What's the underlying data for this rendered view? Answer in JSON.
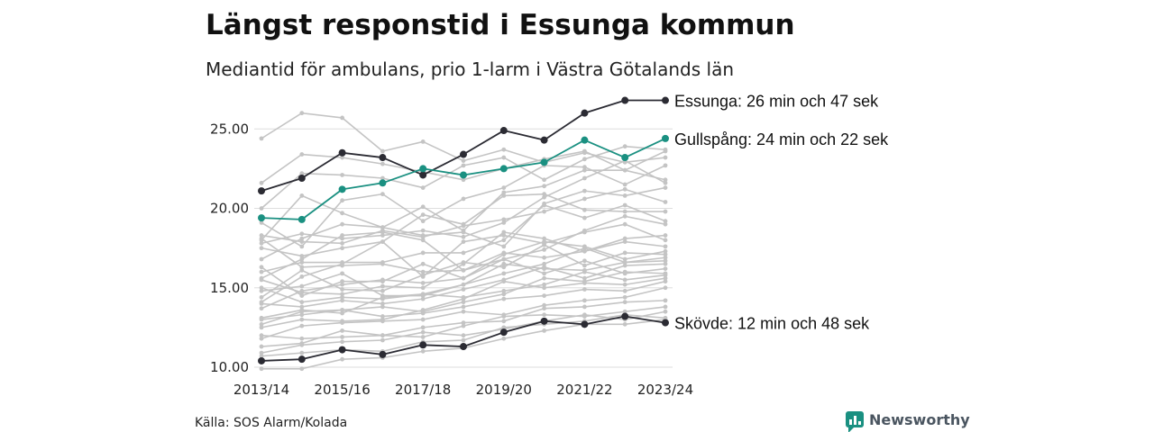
{
  "chart_data": {
    "type": "line",
    "title": "Längst responstid i Essunga kommun",
    "subtitle": "Mediantid för ambulans, prio 1-larm i Västra Götalands län",
    "x": [
      "2013/14",
      "2014/15",
      "2015/16",
      "2016/17",
      "2017/18",
      "2018/19",
      "2019/20",
      "2020/21",
      "2021/22",
      "2022/23",
      "2023/24"
    ],
    "x_tick_labels": [
      "2013/14",
      "2015/16",
      "2017/18",
      "2019/20",
      "2021/22",
      "2023/24"
    ],
    "y_ticks": [
      "10.00",
      "15.00",
      "20.00",
      "25.00"
    ],
    "ylim": [
      10,
      27
    ],
    "grid": "horizontal",
    "highlighted_series": [
      {
        "name": "Essunga",
        "label": "Essunga: 26 min och 47 sek",
        "color": "#2b2b33",
        "values": [
          21.1,
          21.9,
          23.5,
          23.2,
          22.1,
          23.4,
          24.9,
          24.3,
          26.0,
          26.8,
          26.8
        ]
      },
      {
        "name": "Gullspång",
        "label": "Gullspång: 24 min och 22 sek",
        "color": "#1a9081",
        "values": [
          19.4,
          19.3,
          21.2,
          21.6,
          22.5,
          22.1,
          22.5,
          22.9,
          24.3,
          23.2,
          24.4
        ]
      },
      {
        "name": "Skövde",
        "label": "Skövde: 12 min och 48 sek",
        "color": "#2b2b33",
        "values": [
          10.4,
          10.5,
          11.1,
          10.8,
          11.4,
          11.3,
          12.2,
          12.9,
          12.7,
          13.2,
          12.8
        ]
      }
    ],
    "background_series_color": "#c4c4c4",
    "background_series": [
      [
        24.4,
        26.0,
        25.7,
        23.6,
        24.2,
        23.0,
        23.7,
        22.9,
        23.5,
        22.9,
        23.2
      ],
      [
        21.6,
        23.4,
        23.2,
        22.8,
        22.3,
        21.8,
        22.5,
        23.1,
        23.6,
        22.4,
        23.6
      ],
      [
        20.0,
        22.2,
        22.1,
        21.9,
        21.3,
        22.7,
        23.2,
        21.8,
        23.1,
        23.9,
        23.7
      ],
      [
        19.1,
        17.6,
        20.5,
        20.9,
        19.2,
        20.6,
        21.3,
        22.7,
        22.6,
        21.5,
        22.7
      ],
      [
        18.0,
        20.8,
        19.7,
        18.8,
        20.1,
        18.6,
        21.0,
        21.4,
        22.4,
        22.4,
        21.8
      ],
      [
        17.8,
        18.4,
        18.1,
        18.3,
        18.6,
        18.2,
        19.1,
        20.7,
        21.9,
        23.0,
        21.6
      ],
      [
        16.8,
        18.1,
        19.0,
        18.8,
        18.3,
        18.5,
        17.6,
        20.3,
        21.1,
        20.8,
        21.3
      ],
      [
        18.3,
        17.9,
        17.8,
        18.6,
        18.2,
        18.9,
        19.3,
        19.8,
        20.6,
        21.2,
        20.4
      ],
      [
        17.5,
        17.0,
        17.5,
        17.9,
        19.6,
        19.0,
        20.8,
        20.9,
        19.9,
        19.8,
        19.8
      ],
      [
        16.0,
        16.6,
        16.6,
        16.6,
        17.2,
        17.2,
        18.0,
        20.2,
        19.4,
        20.2,
        19.2
      ],
      [
        15.6,
        16.8,
        18.3,
        18.5,
        18.0,
        16.1,
        16.8,
        17.4,
        18.6,
        19.5,
        19.0
      ],
      [
        18.1,
        16.3,
        16.4,
        16.5,
        16.0,
        16.1,
        17.2,
        16.9,
        17.3,
        18.1,
        18.3
      ],
      [
        14.1,
        15.7,
        16.5,
        17.9,
        15.7,
        17.9,
        18.3,
        17.8,
        18.5,
        19.0,
        18.0
      ],
      [
        15.5,
        14.7,
        14.6,
        15.1,
        15.0,
        16.5,
        18.5,
        18.1,
        17.3,
        17.9,
        17.6
      ],
      [
        16.3,
        14.5,
        15.4,
        15.4,
        16.5,
        15.6,
        17.1,
        17.9,
        17.6,
        16.8,
        17.3
      ],
      [
        14.4,
        16.1,
        14.9,
        14.8,
        15.8,
        16.6,
        16.3,
        17.7,
        16.4,
        17.2,
        17.1
      ],
      [
        15.0,
        14.1,
        14.4,
        14.3,
        14.6,
        15.2,
        15.9,
        16.5,
        17.5,
        16.6,
        16.9
      ],
      [
        14.8,
        15.1,
        15.9,
        14.5,
        14.5,
        15.2,
        16.5,
        16.2,
        16.1,
        16.6,
        16.7
      ],
      [
        14.0,
        13.8,
        14.2,
        14.0,
        14.3,
        14.9,
        15.5,
        16.3,
        15.6,
        16.4,
        16.5
      ],
      [
        13.7,
        14.8,
        15.2,
        15.5,
        15.3,
        15.6,
        16.8,
        15.9,
        16.7,
        15.9,
        16.2
      ],
      [
        12.7,
        13.5,
        13.6,
        13.8,
        13.5,
        14.1,
        14.6,
        15.6,
        15.4,
        16.0,
        15.9
      ],
      [
        13.1,
        13.6,
        13.4,
        14.4,
        14.6,
        14.4,
        14.8,
        15.2,
        16.0,
        15.5,
        15.8
      ],
      [
        12.5,
        13.0,
        12.9,
        13.0,
        13.6,
        14.3,
        15.4,
        15.0,
        15.3,
        15.2,
        15.6
      ],
      [
        11.8,
        12.6,
        12.8,
        12.9,
        13.0,
        13.5,
        13.3,
        13.9,
        14.2,
        14.4,
        15.0
      ],
      [
        12.0,
        11.8,
        11.9,
        12.0,
        12.5,
        12.8,
        12.9,
        13.7,
        13.8,
        14.1,
        14.2
      ],
      [
        11.3,
        11.5,
        12.3,
        12.0,
        11.9,
        12.6,
        13.2,
        13.3,
        13.2,
        13.5,
        13.8
      ],
      [
        10.9,
        11.4,
        11.6,
        11.7,
        12.2,
        12.0,
        12.4,
        12.9,
        13.3,
        13.0,
        13.5
      ],
      [
        10.7,
        10.9,
        11.1,
        11.0,
        11.6,
        11.7,
        12.5,
        12.7,
        12.9,
        13.3,
        13.1
      ],
      [
        9.9,
        9.9,
        10.5,
        10.6,
        11.0,
        11.2,
        11.8,
        12.3,
        12.7,
        12.7,
        13.0
      ],
      [
        13.0,
        13.3,
        13.6,
        13.2,
        13.4,
        13.8,
        14.3,
        14.5,
        14.9,
        14.8,
        15.4
      ]
    ]
  },
  "source": "Källa: SOS Alarm/Kolada",
  "brand": {
    "name": "Newsworthy",
    "icon": "bar-chart-icon",
    "color": "#1a9081"
  }
}
